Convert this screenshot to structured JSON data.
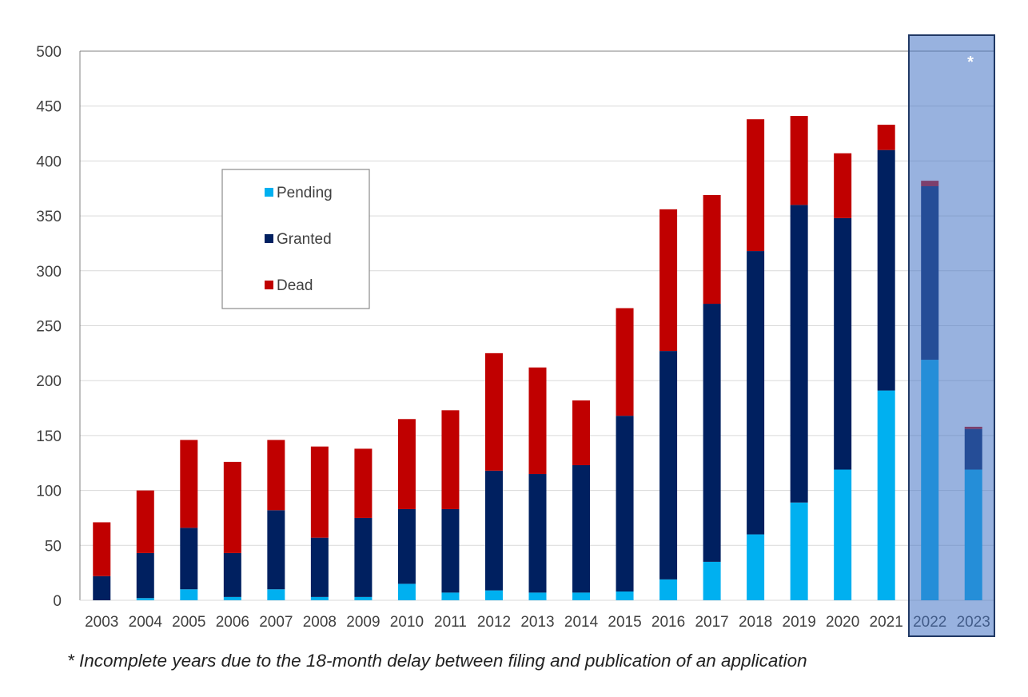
{
  "chart_data": {
    "type": "bar",
    "stacked": true,
    "categories": [
      "2003",
      "2004",
      "2005",
      "2006",
      "2007",
      "2008",
      "2009",
      "2010",
      "2011",
      "2012",
      "2013",
      "2014",
      "2015",
      "2016",
      "2017",
      "2018",
      "2019",
      "2020",
      "2021",
      "2022",
      "2023"
    ],
    "series": [
      {
        "name": "Pending",
        "color": "#00b0f0",
        "values": [
          0,
          2,
          10,
          3,
          10,
          3,
          3,
          15,
          7,
          9,
          7,
          7,
          8,
          19,
          35,
          60,
          89,
          119,
          191,
          219,
          119
        ]
      },
      {
        "name": "Granted",
        "color": "#002060",
        "values": [
          22,
          41,
          56,
          40,
          72,
          54,
          72,
          68,
          76,
          109,
          108,
          116,
          160,
          208,
          235,
          258,
          271,
          229,
          219,
          158,
          37
        ]
      },
      {
        "name": "Dead",
        "color": "#c00000",
        "values": [
          49,
          57,
          80,
          83,
          64,
          83,
          63,
          82,
          90,
          107,
          97,
          59,
          98,
          129,
          99,
          120,
          81,
          59,
          23,
          5,
          2
        ]
      }
    ],
    "ylim": [
      0,
      500
    ],
    "yticks": [
      "0",
      "50",
      "100",
      "150",
      "200",
      "250",
      "300",
      "350",
      "400",
      "450",
      "500"
    ],
    "grid": true,
    "legend_position": "upper-left inside plot",
    "highlight": {
      "years": [
        "2022",
        "2023"
      ],
      "marker": "*",
      "color": "#4472c4"
    },
    "footnote": "* Incomplete years due to the 18-month delay between filing and publication of an application"
  }
}
